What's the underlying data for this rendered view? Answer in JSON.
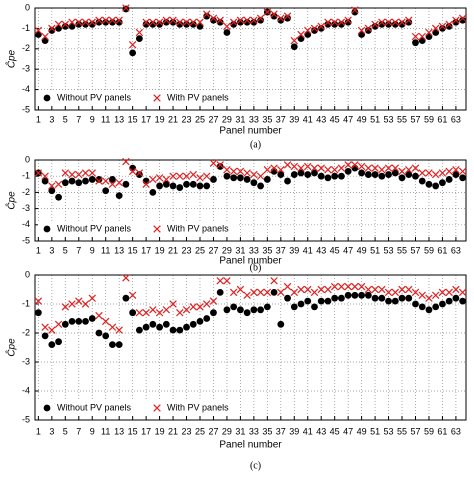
{
  "chart_data": [
    {
      "type": "scatter",
      "caption": "(a)",
      "xlabel": "Panel number",
      "ylabel": "Ĉpe",
      "grid": true,
      "legend": "lower left",
      "x": [
        1,
        2,
        3,
        4,
        5,
        6,
        7,
        8,
        9,
        10,
        11,
        12,
        13,
        14,
        15,
        16,
        17,
        18,
        19,
        20,
        21,
        22,
        23,
        24,
        25,
        26,
        27,
        28,
        29,
        30,
        31,
        32,
        33,
        34,
        35,
        36,
        37,
        38,
        39,
        40,
        41,
        42,
        43,
        44,
        45,
        46,
        47,
        48,
        49,
        50,
        51,
        52,
        53,
        54,
        55,
        56,
        57,
        58,
        59,
        60,
        61,
        62,
        63,
        64
      ],
      "xlim": [
        0.5,
        64.5
      ],
      "xticks": [
        1,
        3,
        5,
        7,
        9,
        11,
        13,
        15,
        17,
        19,
        21,
        23,
        25,
        27,
        29,
        31,
        33,
        35,
        37,
        39,
        41,
        43,
        45,
        47,
        49,
        51,
        53,
        55,
        57,
        59,
        61,
        63
      ],
      "ylim": [
        -5,
        0
      ],
      "yticks": [
        0,
        -1,
        -2,
        -3,
        -4,
        -5
      ],
      "series": [
        {
          "name": "Without PV panels",
          "color": "#000000",
          "marker": "circle",
          "values": [
            -1.3,
            -1.6,
            -1.1,
            -1.0,
            -0.9,
            -0.9,
            -0.8,
            -0.8,
            -0.8,
            -0.7,
            -0.7,
            -0.7,
            -0.7,
            -0.05,
            -2.2,
            -1.5,
            -0.8,
            -0.8,
            -0.8,
            -0.7,
            -0.7,
            -0.8,
            -0.8,
            -0.8,
            -0.9,
            -0.4,
            -0.6,
            -0.7,
            -1.2,
            -0.8,
            -0.7,
            -0.7,
            -0.7,
            -0.6,
            -0.2,
            -0.4,
            -0.6,
            -0.5,
            -1.9,
            -1.5,
            -1.3,
            -1.1,
            -1.0,
            -0.8,
            -0.8,
            -0.8,
            -0.7,
            -0.2,
            -1.3,
            -1.1,
            -0.9,
            -0.8,
            -0.8,
            -0.8,
            -0.8,
            -0.7,
            -1.7,
            -1.6,
            -1.4,
            -1.2,
            -1.0,
            -0.9,
            -0.7,
            -0.6
          ]
        },
        {
          "name": "With PV panels",
          "color": "#e02020",
          "marker": "x",
          "values": [
            -1.1,
            -1.4,
            -1.0,
            -0.8,
            -0.8,
            -0.7,
            -0.7,
            -0.7,
            -0.7,
            -0.6,
            -0.6,
            -0.6,
            -0.6,
            0,
            -1.8,
            -1.2,
            -0.7,
            -0.7,
            -0.7,
            -0.6,
            -0.6,
            -0.7,
            -0.7,
            -0.7,
            -0.7,
            -0.3,
            -0.5,
            -0.6,
            -0.9,
            -0.7,
            -0.6,
            -0.6,
            -0.6,
            -0.5,
            -0.2,
            -0.3,
            -0.5,
            -0.4,
            -1.6,
            -1.3,
            -1.1,
            -1.0,
            -0.9,
            -0.7,
            -0.7,
            -0.7,
            -0.6,
            -0.1,
            -1.1,
            -1.0,
            -0.8,
            -0.7,
            -0.7,
            -0.7,
            -0.7,
            -0.6,
            -1.4,
            -1.4,
            -1.2,
            -1.0,
            -0.9,
            -0.8,
            -0.6,
            -0.5
          ]
        }
      ]
    },
    {
      "type": "scatter",
      "caption": "(b)",
      "xlabel": "Panel number",
      "ylabel": "Ĉpe",
      "grid": true,
      "legend": "lower left",
      "x": [
        1,
        2,
        3,
        4,
        5,
        6,
        7,
        8,
        9,
        10,
        11,
        12,
        13,
        14,
        15,
        16,
        17,
        18,
        19,
        20,
        21,
        22,
        23,
        24,
        25,
        26,
        27,
        28,
        29,
        30,
        31,
        32,
        33,
        34,
        35,
        36,
        37,
        38,
        39,
        40,
        41,
        42,
        43,
        44,
        45,
        46,
        47,
        48,
        49,
        50,
        51,
        52,
        53,
        54,
        55,
        56,
        57,
        58,
        59,
        60,
        61,
        62,
        63,
        64
      ],
      "xlim": [
        0.5,
        64.5
      ],
      "xticks": [
        1,
        3,
        5,
        7,
        9,
        11,
        13,
        15,
        17,
        19,
        21,
        23,
        25,
        27,
        29,
        31,
        33,
        35,
        37,
        39,
        41,
        43,
        45,
        47,
        49,
        51,
        53,
        55,
        57,
        59,
        61,
        63
      ],
      "ylim": [
        -5,
        0
      ],
      "yticks": [
        0,
        -1,
        -2,
        -3,
        -4,
        -5
      ],
      "series": [
        {
          "name": "Without PV panels",
          "color": "#000000",
          "marker": "circle",
          "values": [
            -0.8,
            -1.3,
            -1.9,
            -2.3,
            -1.4,
            -1.3,
            -1.4,
            -1.3,
            -1.2,
            -1.2,
            -1.9,
            -1.2,
            -2.2,
            -1.5,
            -0.5,
            -0.9,
            -1.3,
            -2.0,
            -1.6,
            -1.5,
            -1.6,
            -1.7,
            -1.5,
            -1.5,
            -1.6,
            -1.6,
            -1.2,
            -0.4,
            -1.0,
            -1.1,
            -1.1,
            -1.2,
            -1.4,
            -1.6,
            -1.2,
            -0.7,
            -0.9,
            -1.3,
            -0.9,
            -0.8,
            -0.9,
            -0.8,
            -1.0,
            -1.1,
            -1.0,
            -1.0,
            -0.7,
            -0.5,
            -0.8,
            -0.9,
            -0.9,
            -1.0,
            -0.9,
            -0.8,
            -1.1,
            -0.9,
            -1.0,
            -1.3,
            -1.5,
            -1.6,
            -1.4,
            -1.2,
            -0.9,
            -1.1
          ]
        },
        {
          "name": "With PV panels",
          "color": "#e02020",
          "marker": "x",
          "values": [
            -0.8,
            -1.0,
            -1.6,
            -1.5,
            -0.8,
            -0.9,
            -0.9,
            -0.8,
            -0.8,
            -1.3,
            -1.3,
            -1.5,
            -1.4,
            -0.1,
            -0.7,
            -0.8,
            -1.5,
            -1.2,
            -1.1,
            -1.2,
            -1.0,
            -1.0,
            -1.0,
            -0.9,
            -1.1,
            -1.0,
            -0.2,
            -0.3,
            -0.6,
            -0.7,
            -0.7,
            -0.8,
            -0.9,
            -1.0,
            -0.6,
            -0.5,
            -0.6,
            -0.3,
            -0.4,
            -0.5,
            -0.4,
            -0.5,
            -0.5,
            -0.6,
            -0.6,
            -0.5,
            -0.3,
            -0.3,
            -0.4,
            -0.5,
            -0.5,
            -0.6,
            -0.5,
            -0.5,
            -0.7,
            -0.6,
            -0.5,
            -0.8,
            -0.8,
            -0.9,
            -0.8,
            -0.7,
            -0.6,
            -0.7
          ]
        }
      ]
    },
    {
      "type": "scatter",
      "caption": "(c)",
      "xlabel": "Panel number",
      "ylabel": "Ĉpe",
      "grid": true,
      "legend": "lower left",
      "x": [
        1,
        2,
        3,
        4,
        5,
        6,
        7,
        8,
        9,
        10,
        11,
        12,
        13,
        14,
        15,
        16,
        17,
        18,
        19,
        20,
        21,
        22,
        23,
        24,
        25,
        26,
        27,
        28,
        29,
        30,
        31,
        32,
        33,
        34,
        35,
        36,
        37,
        38,
        39,
        40,
        41,
        42,
        43,
        44,
        45,
        46,
        47,
        48,
        49,
        50,
        51,
        52,
        53,
        54,
        55,
        56,
        57,
        58,
        59,
        60,
        61,
        62,
        63,
        64
      ],
      "xlim": [
        0.5,
        64.5
      ],
      "xticks": [
        1,
        3,
        5,
        7,
        9,
        11,
        13,
        15,
        17,
        19,
        21,
        23,
        25,
        27,
        29,
        31,
        33,
        35,
        37,
        39,
        41,
        43,
        45,
        47,
        49,
        51,
        53,
        55,
        57,
        59,
        61,
        63
      ],
      "ylim": [
        -5,
        0
      ],
      "yticks": [
        0,
        -1,
        -2,
        -3,
        -4,
        -5
      ],
      "series": [
        {
          "name": "Without PV panels",
          "color": "#000000",
          "marker": "circle",
          "values": [
            -1.3,
            -2.1,
            -2.4,
            -2.3,
            -1.7,
            -1.6,
            -1.6,
            -1.6,
            -1.5,
            -2.0,
            -2.1,
            -2.4,
            -2.4,
            -0.8,
            -1.3,
            -1.9,
            -1.8,
            -1.7,
            -1.8,
            -1.7,
            -1.9,
            -1.9,
            -1.8,
            -1.7,
            -1.6,
            -1.5,
            -1.3,
            -0.6,
            -1.2,
            -1.1,
            -1.2,
            -1.3,
            -1.2,
            -1.2,
            -1.1,
            -0.6,
            -1.7,
            -0.8,
            -1.1,
            -1.0,
            -0.9,
            -1.1,
            -0.9,
            -0.9,
            -0.8,
            -0.8,
            -0.7,
            -0.7,
            -0.7,
            -0.7,
            -0.8,
            -0.8,
            -0.9,
            -0.9,
            -0.8,
            -0.8,
            -1.0,
            -1.1,
            -1.2,
            -1.1,
            -1.0,
            -0.9,
            -0.8,
            -0.9
          ]
        },
        {
          "name": "With PV panels",
          "color": "#e02020",
          "marker": "x",
          "values": [
            -0.9,
            -1.8,
            -1.9,
            -1.7,
            -1.1,
            -1.0,
            -0.9,
            -1.0,
            -0.8,
            -1.4,
            -1.6,
            -1.8,
            -1.9,
            -0.1,
            -0.7,
            -1.3,
            -1.3,
            -1.2,
            -1.3,
            -1.2,
            -1.0,
            -1.3,
            -1.2,
            -1.1,
            -1.1,
            -1.0,
            -0.9,
            -0.2,
            -0.2,
            -0.6,
            -0.5,
            -0.7,
            -0.6,
            -0.6,
            -0.6,
            -0.2,
            -0.6,
            -0.4,
            -0.6,
            -0.5,
            -0.5,
            -0.6,
            -0.5,
            -0.5,
            -0.4,
            -0.4,
            -0.4,
            -0.4,
            -0.4,
            -0.5,
            -0.5,
            -0.5,
            -0.6,
            -0.6,
            -0.5,
            -0.5,
            -0.6,
            -0.7,
            -0.8,
            -0.7,
            -0.6,
            -0.6,
            -0.5,
            -0.6
          ]
        }
      ]
    }
  ]
}
